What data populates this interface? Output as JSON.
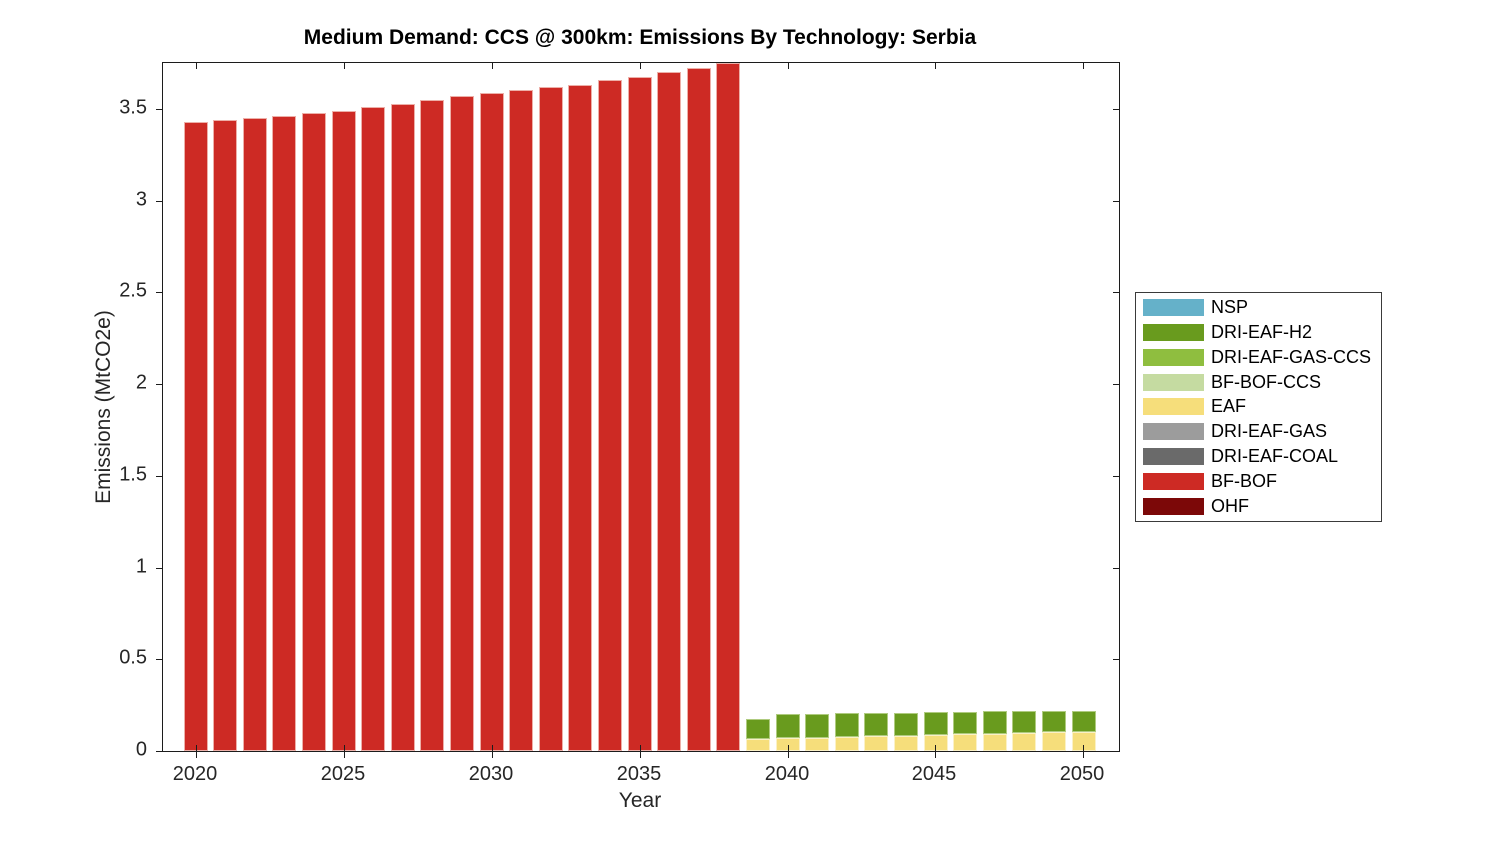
{
  "figure": {
    "title": "Medium Demand: CCS @ 300km: Emissions By Technology: Serbia",
    "background_color": "#ffffff",
    "axis_color": "#1c1c1c",
    "text_color": "#262626"
  },
  "chart_data": {
    "type": "bar",
    "stacked": true,
    "title": "Medium Demand: CCS @ 300km: Emissions By Technology: Serbia",
    "xlabel": "Year",
    "ylabel": "Emissions (MtCO2e)",
    "xlim": [
      2018.9,
      2051.2
    ],
    "ylim": [
      0,
      3.75
    ],
    "xticks": [
      "2020",
      "2025",
      "2030",
      "2035",
      "2040",
      "2045",
      "2050"
    ],
    "xtick_values": [
      2020,
      2025,
      2030,
      2035,
      2040,
      2045,
      2050
    ],
    "yticks": [
      "0",
      "0.5",
      "1",
      "1.5",
      "2",
      "2.5",
      "3",
      "3.5"
    ],
    "ytick_values": [
      0,
      0.5,
      1,
      1.5,
      2,
      2.5,
      3,
      3.5
    ],
    "grid": false,
    "legend_position": "outside-right",
    "bar_width_fraction": 0.8,
    "years": [
      2020,
      2021,
      2022,
      2023,
      2024,
      2025,
      2026,
      2027,
      2028,
      2029,
      2030,
      2031,
      2032,
      2033,
      2034,
      2035,
      2036,
      2037,
      2038,
      2039,
      2040,
      2041,
      2042,
      2043,
      2044,
      2045,
      2046,
      2047,
      2048,
      2049,
      2050
    ],
    "series": [
      {
        "name": "BF-BOF",
        "color": "#CD2A24",
        "edge_color": "#EDAFA8",
        "values": [
          3.43,
          3.441,
          3.452,
          3.464,
          3.476,
          3.49,
          3.51,
          3.528,
          3.548,
          3.568,
          3.588,
          3.603,
          3.617,
          3.632,
          3.655,
          3.675,
          3.699,
          3.722,
          3.748,
          0,
          0,
          0,
          0,
          0,
          0,
          0,
          0,
          0,
          0,
          0,
          0
        ]
      },
      {
        "name": "EAF",
        "color": "#F6DE7B",
        "edge_color": "#FBF1C6",
        "values": [
          0,
          0,
          0,
          0,
          0,
          0,
          0,
          0,
          0,
          0,
          0,
          0,
          0,
          0,
          0,
          0,
          0,
          0,
          0,
          0.065,
          0.073,
          0.073,
          0.076,
          0.08,
          0.082,
          0.086,
          0.091,
          0.094,
          0.1,
          0.104,
          0.105
        ]
      },
      {
        "name": "DRI-EAF-H2",
        "color": "#699B1E",
        "edge_color": "#AFCB7F",
        "values": [
          0,
          0,
          0,
          0,
          0,
          0,
          0,
          0,
          0,
          0,
          0,
          0,
          0,
          0,
          0,
          0,
          0,
          0,
          0,
          0.108,
          0.13,
          0.13,
          0.129,
          0.129,
          0.128,
          0.126,
          0.123,
          0.122,
          0.118,
          0.114,
          0.113
        ]
      }
    ]
  },
  "legend": {
    "entries": [
      {
        "label": "NSP",
        "color": "#65B1C9"
      },
      {
        "label": "DRI-EAF-H2",
        "color": "#699B1E"
      },
      {
        "label": "DRI-EAF-GAS-CCS",
        "color": "#8FBE3F"
      },
      {
        "label": "BF-BOF-CCS",
        "color": "#C5DBA1"
      },
      {
        "label": "EAF",
        "color": "#F6DE7B"
      },
      {
        "label": "DRI-EAF-GAS",
        "color": "#9C9C9C"
      },
      {
        "label": "DRI-EAF-COAL",
        "color": "#6A6A6A"
      },
      {
        "label": "BF-BOF",
        "color": "#CD2A24"
      },
      {
        "label": "OHF",
        "color": "#7C0808"
      }
    ]
  }
}
